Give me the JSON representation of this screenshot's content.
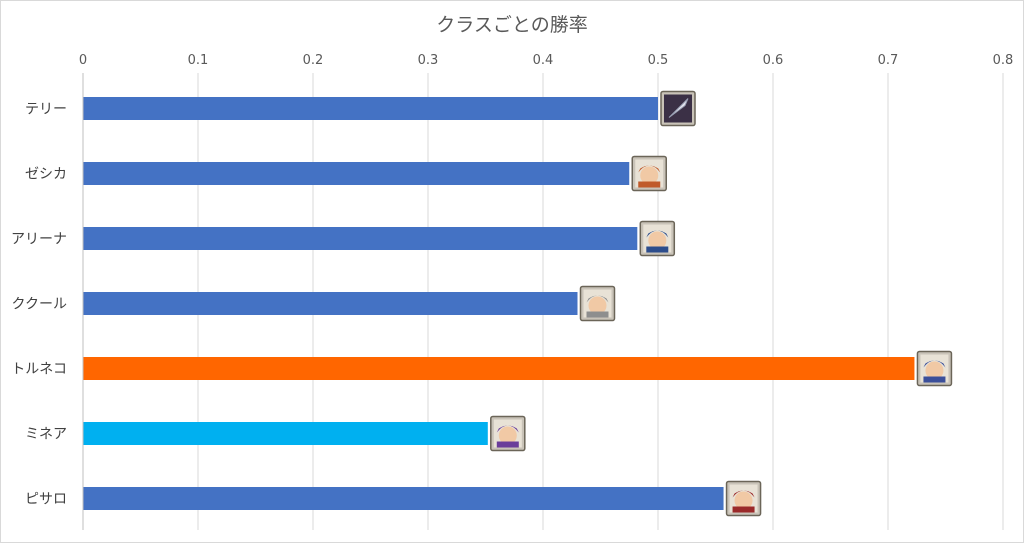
{
  "chart_data": {
    "type": "bar",
    "orientation": "horizontal",
    "title": "クラスごとの勝率",
    "xlabel": "",
    "ylabel": "",
    "xlim": [
      0,
      0.8
    ],
    "ticks": [
      "0",
      "0.1",
      "0.2",
      "0.3",
      "0.4",
      "0.5",
      "0.6",
      "0.7",
      "0.8"
    ],
    "tick_values": [
      0,
      0.1,
      0.2,
      0.3,
      0.4,
      0.5,
      0.6,
      0.7,
      0.8
    ],
    "grid": true,
    "axis_position": "top",
    "categories": [
      "テリー",
      "ゼシカ",
      "アリーナ",
      "ククール",
      "トルネコ",
      "ミネア",
      "ピサロ"
    ],
    "values": [
      0.5,
      0.475,
      0.482,
      0.43,
      0.723,
      0.352,
      0.557
    ],
    "bar_colors": [
      "#4472c4",
      "#4472c4",
      "#4472c4",
      "#4472c4",
      "#ff6600",
      "#00b0f0",
      "#4472c4"
    ],
    "bar_icons": [
      "sword-icon",
      "character-portrait-icon",
      "character-portrait-icon",
      "character-portrait-icon",
      "character-portrait-icon",
      "character-portrait-icon",
      "character-portrait-icon"
    ],
    "grid_color": "#d9d9d9"
  }
}
